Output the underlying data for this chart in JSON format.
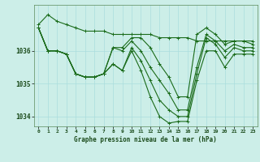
{
  "title": "Graphe pression niveau de la mer (hPa)",
  "background_color": "#cceee8",
  "plot_bg_color": "#cceee8",
  "grid_color": "#aadddd",
  "line_color": "#1a6b1a",
  "marker_color": "#1a6b1a",
  "xlim": [
    -0.5,
    23.5
  ],
  "ylim": [
    1033.7,
    1037.4
  ],
  "yticks": [
    1034,
    1035,
    1036
  ],
  "xticks": [
    0,
    1,
    2,
    3,
    4,
    5,
    6,
    7,
    8,
    9,
    10,
    11,
    12,
    13,
    14,
    15,
    16,
    17,
    18,
    19,
    20,
    21,
    22,
    23
  ],
  "series": [
    [
      1036.8,
      1037.1,
      1036.9,
      1036.8,
      1036.7,
      1036.6,
      1036.6,
      1036.6,
      1036.5,
      1036.5,
      1036.5,
      1036.5,
      1036.5,
      1036.4,
      1036.4,
      1036.4,
      1036.4,
      1036.3,
      1036.3,
      1036.3,
      1036.3,
      1036.3,
      1036.3,
      1036.3
    ],
    [
      1036.7,
      1036.0,
      1036.0,
      1035.9,
      1035.3,
      1035.2,
      1035.2,
      1035.3,
      1036.1,
      1036.1,
      1036.4,
      1036.4,
      1036.1,
      1035.6,
      1035.2,
      1034.6,
      1034.6,
      1036.5,
      1036.7,
      1036.5,
      1036.2,
      1036.3,
      1036.3,
      1036.2
    ],
    [
      1036.7,
      1036.0,
      1036.0,
      1035.9,
      1035.3,
      1035.2,
      1035.2,
      1035.3,
      1036.1,
      1036.0,
      1036.3,
      1036.0,
      1035.5,
      1035.1,
      1034.7,
      1034.2,
      1034.2,
      1035.5,
      1036.5,
      1036.3,
      1036.0,
      1036.2,
      1036.1,
      1036.1
    ],
    [
      1036.7,
      1036.0,
      1036.0,
      1035.9,
      1035.3,
      1035.2,
      1035.2,
      1035.3,
      1035.6,
      1035.4,
      1036.1,
      1035.7,
      1035.1,
      1034.5,
      1034.2,
      1034.0,
      1034.0,
      1035.3,
      1036.4,
      1036.2,
      1035.8,
      1036.1,
      1036.0,
      1036.0
    ],
    [
      1036.7,
      1036.0,
      1036.0,
      1035.9,
      1035.3,
      1035.2,
      1035.2,
      1035.3,
      1035.6,
      1035.4,
      1036.0,
      1035.4,
      1034.6,
      1034.0,
      1033.8,
      1033.85,
      1033.85,
      1035.1,
      1036.0,
      1036.0,
      1035.5,
      1035.9,
      1035.9,
      1035.9
    ]
  ]
}
